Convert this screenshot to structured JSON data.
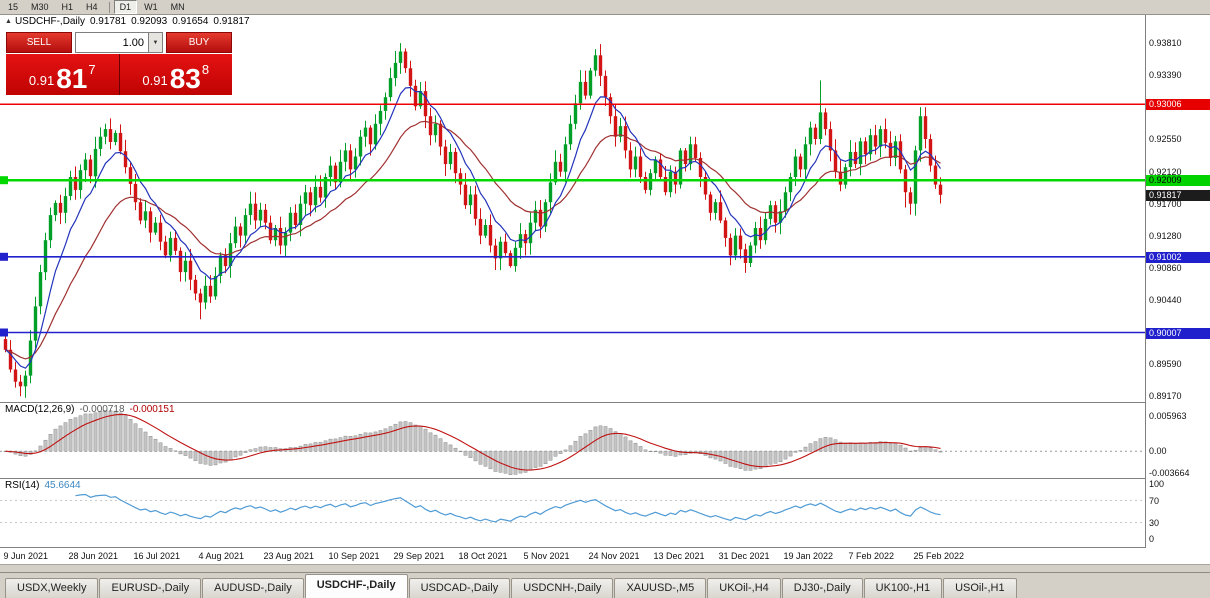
{
  "toolbar": {
    "timeframes": [
      {
        "label": "15",
        "active": false
      },
      {
        "label": "M30",
        "active": false
      },
      {
        "label": "H1",
        "active": false
      },
      {
        "label": "H4",
        "active": false
      },
      {
        "label": "D1",
        "active": true
      },
      {
        "label": "W1",
        "active": false
      },
      {
        "label": "MN",
        "active": false
      }
    ]
  },
  "icons": {
    "collapse_arrow": "▲",
    "dropdown_arrow": "▼"
  },
  "chart_header": {
    "symbol": "USDCHF-,Daily",
    "open": "0.91781",
    "high": "0.92093",
    "low": "0.91654",
    "close": "0.91817"
  },
  "trade_widget": {
    "sell_label": "SELL",
    "buy_label": "BUY",
    "volume": "1.00",
    "bid": {
      "small": "0.91",
      "big": "81",
      "sup": "7"
    },
    "ask": {
      "small": "0.91",
      "big": "83",
      "sup": "8"
    }
  },
  "colors": {
    "candle_up": "#00a028",
    "candle_down": "#d31414",
    "ma_fast": "#2233bb",
    "ma_slow": "#a03030",
    "macd_hist_fill": "#c4c4c4",
    "macd_hist_stroke": "#8a8a8a",
    "macd_signal": "#c01212",
    "rsi_line": "#4f9bd5",
    "hline_red": "#f00000",
    "hline_green": "#00d800",
    "hline_blue": "#2222cc",
    "current_tag": "#1c1c1c"
  },
  "hlines": [
    {
      "price": 0.93006,
      "color": "#f00000",
      "width": 1.5,
      "left_tag": false
    },
    {
      "price": 0.92009,
      "color": "#00d800",
      "width": 2.5,
      "left_tag": true
    },
    {
      "price": 0.91002,
      "color": "#2222cc",
      "width": 1.6,
      "left_tag": true
    },
    {
      "price": 0.90007,
      "color": "#2222cc",
      "width": 1.6,
      "left_tag": true
    }
  ],
  "price_axis": {
    "labels": [
      {
        "text": "0.93810",
        "price": 0.9381,
        "style": "normal"
      },
      {
        "text": "0.93390",
        "price": 0.9339,
        "style": "normal"
      },
      {
        "text": "0.93006",
        "price": 0.93006,
        "style": "tag-red"
      },
      {
        "text": "0.92550",
        "price": 0.9255,
        "style": "normal"
      },
      {
        "text": "0.92120",
        "price": 0.9212,
        "style": "normal"
      },
      {
        "text": "0.92009",
        "price": 0.92009,
        "style": "tag-green"
      },
      {
        "text": "0.91817",
        "price": 0.91817,
        "style": "tag-current"
      },
      {
        "text": "0.91700",
        "price": 0.917,
        "style": "normal"
      },
      {
        "text": "0.91280",
        "price": 0.9128,
        "style": "normal"
      },
      {
        "text": "0.91002",
        "price": 0.91002,
        "style": "tag-blue"
      },
      {
        "text": "0.90860",
        "price": 0.9086,
        "style": "normal"
      },
      {
        "text": "0.90440",
        "price": 0.9044,
        "style": "normal"
      },
      {
        "text": "0.90007",
        "price": 0.90007,
        "style": "tag-blue"
      },
      {
        "text": "0.89590",
        "price": 0.8959,
        "style": "normal"
      },
      {
        "text": "0.89170",
        "price": 0.8917,
        "style": "normal"
      }
    ]
  },
  "macd": {
    "title": "MACD(12,26,9)",
    "main_value": "-0.000718",
    "signal_value": "-0.000151",
    "axis_max_text": "0.005963",
    "axis_zero_text": "0.00",
    "axis_min_text": "-0.003664",
    "axis_max_v": 0.005963,
    "axis_min_v": -0.003664
  },
  "rsi": {
    "title": "RSI(14)",
    "value": "45.6644",
    "levels": [
      {
        "text": "100",
        "v": 100
      },
      {
        "text": "70",
        "v": 70
      },
      {
        "text": "30",
        "v": 30
      },
      {
        "text": "0",
        "v": 0
      }
    ]
  },
  "x_axis": {
    "labels": [
      {
        "text": "9 Jun 2021",
        "index": 0
      },
      {
        "text": "28 Jun 2021",
        "index": 13
      },
      {
        "text": "16 Jul 2021",
        "index": 26
      },
      {
        "text": "4 Aug 2021",
        "index": 39
      },
      {
        "text": "23 Aug 2021",
        "index": 52
      },
      {
        "text": "10 Sep 2021",
        "index": 65
      },
      {
        "text": "29 Sep 2021",
        "index": 78
      },
      {
        "text": "18 Oct 2021",
        "index": 91
      },
      {
        "text": "5 Nov 2021",
        "index": 104
      },
      {
        "text": "24 Nov 2021",
        "index": 117
      },
      {
        "text": "13 Dec 2021",
        "index": 130
      },
      {
        "text": "31 Dec 2021",
        "index": 143
      },
      {
        "text": "19 Jan 2022",
        "index": 156
      },
      {
        "text": "7 Feb 2022",
        "index": 169
      },
      {
        "text": "25 Feb 2022",
        "index": 182
      }
    ]
  },
  "tabs": [
    {
      "label": "USDX,Weekly",
      "active": false
    },
    {
      "label": "EURUSD-,Daily",
      "active": false
    },
    {
      "label": "AUDUSD-,Daily",
      "active": false
    },
    {
      "label": "USDCHF-,Daily",
      "active": true
    },
    {
      "label": "USDCAD-,Daily",
      "active": false
    },
    {
      "label": "USDCNH-,Daily",
      "active": false
    },
    {
      "label": "XAUUSD-,M5",
      "active": false
    },
    {
      "label": "UKOil-,H4",
      "active": false
    },
    {
      "label": "DJ30-,Daily",
      "active": false
    },
    {
      "label": "UK100-,H1",
      "active": false
    },
    {
      "label": "USOil-,H1",
      "active": false
    }
  ],
  "chart_data": {
    "type": "candlestick",
    "symbol": "USDCHF",
    "timeframe": "Daily",
    "price_range_visible": [
      0.8908,
      0.9418
    ],
    "first_open": 0.8992,
    "closes": [
      0.8978,
      0.8952,
      0.8936,
      0.893,
      0.8944,
      0.899,
      0.9035,
      0.908,
      0.9122,
      0.9155,
      0.9171,
      0.9158,
      0.918,
      0.9205,
      0.9188,
      0.9214,
      0.9228,
      0.9206,
      0.9242,
      0.9258,
      0.9268,
      0.9251,
      0.9263,
      0.9239,
      0.9218,
      0.9196,
      0.9172,
      0.9148,
      0.916,
      0.9132,
      0.9145,
      0.912,
      0.9102,
      0.9125,
      0.9108,
      0.908,
      0.9095,
      0.907,
      0.9052,
      0.904,
      0.9062,
      0.9048,
      0.9075,
      0.9102,
      0.9088,
      0.9118,
      0.914,
      0.9128,
      0.9155,
      0.917,
      0.9148,
      0.9162,
      0.9145,
      0.9122,
      0.9138,
      0.9115,
      0.9132,
      0.9158,
      0.9142,
      0.917,
      0.9185,
      0.9168,
      0.9192,
      0.9178,
      0.9205,
      0.922,
      0.9198,
      0.9225,
      0.924,
      0.9215,
      0.9232,
      0.9258,
      0.927,
      0.9248,
      0.9275,
      0.9292,
      0.931,
      0.9335,
      0.9355,
      0.937,
      0.9348,
      0.9325,
      0.9298,
      0.9318,
      0.9285,
      0.926,
      0.9275,
      0.9245,
      0.9222,
      0.9238,
      0.921,
      0.9195,
      0.9168,
      0.9182,
      0.915,
      0.9128,
      0.9142,
      0.9115,
      0.9098,
      0.912,
      0.9105,
      0.9088,
      0.9112,
      0.913,
      0.9118,
      0.9145,
      0.9162,
      0.914,
      0.9172,
      0.9198,
      0.9225,
      0.9212,
      0.9248,
      0.9275,
      0.9302,
      0.933,
      0.9312,
      0.9345,
      0.9365,
      0.9338,
      0.931,
      0.9285,
      0.9258,
      0.9272,
      0.924,
      0.9215,
      0.9232,
      0.9205,
      0.9188,
      0.921,
      0.9228,
      0.9205,
      0.9185,
      0.9212,
      0.9195,
      0.924,
      0.9222,
      0.9248,
      0.923,
      0.9205,
      0.9182,
      0.9158,
      0.9172,
      0.9148,
      0.9125,
      0.9102,
      0.9128,
      0.911,
      0.9092,
      0.9115,
      0.9138,
      0.9122,
      0.915,
      0.9168,
      0.9145,
      0.916,
      0.9185,
      0.9205,
      0.9232,
      0.9215,
      0.9248,
      0.927,
      0.9255,
      0.929,
      0.9268,
      0.924,
      0.9212,
      0.9195,
      0.9218,
      0.9238,
      0.9222,
      0.9252,
      0.9235,
      0.926,
      0.9245,
      0.9268,
      0.925,
      0.923,
      0.9252,
      0.9215,
      0.9185,
      0.917,
      0.924,
      0.9285,
      0.9255,
      0.922,
      0.9195,
      0.91817
    ],
    "wick_overrides": {
      "high": {
        "20": 0.9275,
        "79": 0.9381,
        "118": 0.9373,
        "163": 0.9332,
        "183": 0.9297
      },
      "low": {
        "3": 0.8917,
        "39": 0.9018,
        "101": 0.9086,
        "145": 0.9089,
        "180": 0.9165
      }
    }
  }
}
